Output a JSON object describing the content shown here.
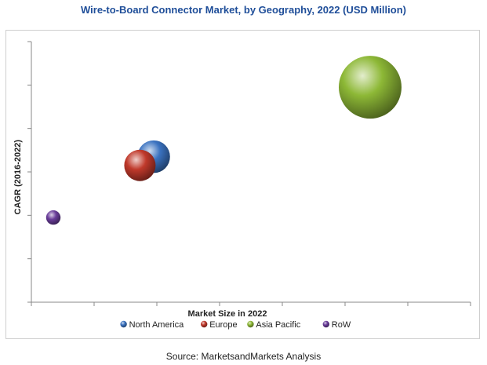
{
  "colors": {
    "title": "#1f4e99",
    "north_america": "#3a72c0",
    "europe": "#c0392b",
    "asia_pacific": "#8db836",
    "row": "#6a3d9a"
  },
  "chart_data": {
    "type": "scatter",
    "subtype": "bubble",
    "title": "Wire-to-Board Connector Market, by Geography, 2022 (USD Million)",
    "xlabel": "Market Size in 2022",
    "ylabel": "CAGR (2016-2022)",
    "xlim": [
      0,
      7
    ],
    "ylim": [
      0,
      6
    ],
    "x_ticks": 7,
    "y_ticks": 6,
    "grid": false,
    "legend_position": "bottom",
    "series": [
      {
        "name": "North America",
        "x": 1.95,
        "y": 3.35,
        "size": 0.52,
        "color": "#3a72c0"
      },
      {
        "name": "Europe",
        "x": 1.73,
        "y": 3.15,
        "size": 0.5,
        "color": "#c0392b"
      },
      {
        "name": "Asia Pacific",
        "x": 5.4,
        "y": 4.95,
        "size": 1.0,
        "color": "#8db836"
      },
      {
        "name": "RoW",
        "x": 0.35,
        "y": 1.95,
        "size": 0.23,
        "color": "#6a3d9a"
      }
    ]
  },
  "source": "Source: MarketsandMarkets Analysis"
}
